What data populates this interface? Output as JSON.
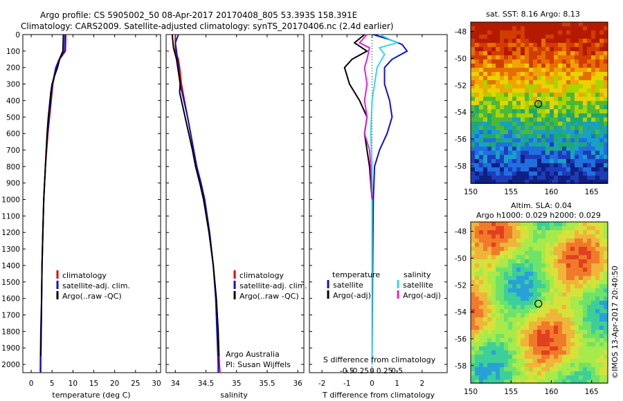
{
  "header": {
    "line1": "Argo profile: CS 5905002_50 08-Apr-2017 20170408_805 53.393S 158.391E",
    "line2": "Climatology: CARS2009. Satellite-adjusted climatology: synTS_20170406.nc (2.4d earlier)"
  },
  "colors": {
    "climatology": "#e00000",
    "satellite": "#1010d0",
    "argo": "#000000",
    "satellite_s": "#30d8e8",
    "argo_s": "#e020e0"
  },
  "panels": {
    "temperature": {
      "xlabel": "temperature (deg C)",
      "legend": [
        "climatology",
        "satellite-adj. clim.",
        "Argo(..raw -QC)"
      ]
    },
    "salinity": {
      "xlabel": "salinity",
      "legend": [
        "climatology",
        "satellite-adj. clim.",
        "Argo(..raw -QC)"
      ],
      "note1": "Argo Australia",
      "note2": "PI: Susan Wijffels"
    },
    "difference": {
      "xlabel_bottom": "T difference from climatology",
      "xlabel_top": "S difference from climatology",
      "legend_t_head": "temperature",
      "legend_s_head": "salinity",
      "legend_t": [
        "satellite",
        "Argo(-adj)"
      ],
      "legend_s": [
        "satellite",
        "Argo(-adj)"
      ]
    }
  },
  "maps": {
    "sst_title": "sat. SST: 8.16 Argo: 8.13",
    "sla_title1": "Altim. SLA: 0.04",
    "sla_title2": "Argo h1000: 0.029 h2000: 0.029",
    "side_label": "©IMOS 13-Apr-2017 20:40:50",
    "lon_ticks": [
      "150",
      "155",
      "160",
      "165"
    ],
    "lat_ticks": [
      "-48",
      "-50",
      "-52",
      "-54",
      "-56",
      "-58"
    ],
    "float_lon": 158.391,
    "float_lat": -53.393
  },
  "chart_data": [
    {
      "type": "line",
      "name": "temperature",
      "xlabel": "temperature (deg C)",
      "ylabel": "",
      "xlim": [
        -2,
        31
      ],
      "ylim": [
        2050,
        0
      ],
      "x_ticks": [
        0,
        5,
        10,
        15,
        20,
        25,
        30
      ],
      "y_ticks": [
        0,
        100,
        200,
        300,
        400,
        500,
        600,
        700,
        800,
        900,
        1000,
        1100,
        1200,
        1300,
        1400,
        1500,
        1600,
        1700,
        1800,
        1900,
        2000
      ],
      "series": [
        {
          "name": "climatology",
          "color": "#e00000",
          "depth": [
            0,
            100,
            150,
            200,
            300,
            400,
            500,
            600,
            700,
            800,
            900,
            1000,
            1200,
            1400,
            1600,
            1800,
            2000,
            2050
          ],
          "values": [
            8.3,
            8.2,
            6.8,
            6.0,
            5.2,
            4.8,
            4.4,
            4.0,
            3.7,
            3.4,
            3.2,
            3.0,
            2.8,
            2.6,
            2.5,
            2.4,
            2.3,
            2.3
          ]
        },
        {
          "name": "satellite-adj. clim.",
          "color": "#1010d0",
          "depth": [
            0,
            100,
            150,
            200,
            300,
            400,
            500,
            600,
            700,
            800,
            900,
            1000,
            1200,
            1400,
            1600,
            1800,
            2000,
            2050
          ],
          "values": [
            8.1,
            8.0,
            6.7,
            5.9,
            5.1,
            4.7,
            4.3,
            3.9,
            3.6,
            3.4,
            3.2,
            3.0,
            2.8,
            2.6,
            2.5,
            2.3,
            2.2,
            2.2
          ]
        },
        {
          "name": "Argo(..raw -QC)",
          "color": "#000000",
          "depth": [
            0,
            100,
            140,
            200,
            250,
            300,
            350,
            400,
            500,
            600,
            700,
            800,
            900,
            1000,
            1200,
            1400,
            1600,
            1800,
            1950
          ],
          "values": [
            7.7,
            7.6,
            6.9,
            6.3,
            5.6,
            5.0,
            4.7,
            4.5,
            4.1,
            3.8,
            3.6,
            3.4,
            3.2,
            3.0,
            2.8,
            2.6,
            2.5,
            2.4,
            2.3
          ]
        }
      ]
    },
    {
      "type": "line",
      "name": "salinity",
      "xlabel": "salinity",
      "xlim": [
        33.85,
        36.1
      ],
      "ylim": [
        2050,
        0
      ],
      "x_ticks": [
        34,
        34.5,
        35,
        35.5,
        36
      ],
      "series": [
        {
          "name": "climatology",
          "color": "#e00000",
          "depth": [
            0,
            100,
            150,
            200,
            300,
            400,
            500,
            600,
            700,
            800,
            900,
            1000,
            1200,
            1400,
            1600,
            1800,
            2000,
            2050
          ],
          "values": [
            34.0,
            34.0,
            34.05,
            34.07,
            34.1,
            34.15,
            34.2,
            34.25,
            34.3,
            34.35,
            34.42,
            34.48,
            34.56,
            34.62,
            34.67,
            34.7,
            34.72,
            34.73
          ]
        },
        {
          "name": "satellite-adj. clim.",
          "color": "#1010d0",
          "depth": [
            0,
            50,
            100,
            200,
            300,
            400,
            500,
            600,
            700,
            800,
            900,
            1000,
            1200,
            1400,
            1600,
            1800,
            2000,
            2050
          ],
          "values": [
            34.05,
            34.0,
            34.02,
            34.05,
            34.08,
            34.14,
            34.2,
            34.25,
            34.3,
            34.35,
            34.42,
            34.48,
            34.56,
            34.62,
            34.66,
            34.68,
            34.7,
            34.7
          ]
        },
        {
          "name": "Argo(..raw -QC)",
          "color": "#000000",
          "depth": [
            0,
            80,
            150,
            200,
            250,
            300,
            350,
            400,
            500,
            600,
            700,
            800,
            900,
            1000,
            1200,
            1400,
            1600,
            1800,
            1950
          ],
          "values": [
            33.95,
            33.97,
            34.02,
            34.04,
            34.06,
            34.08,
            34.07,
            34.1,
            34.16,
            34.22,
            34.28,
            34.33,
            34.4,
            34.46,
            34.55,
            34.62,
            34.67,
            34.7,
            34.71
          ]
        }
      ]
    },
    {
      "type": "line",
      "name": "difference",
      "xlabel": "T difference from climatology",
      "x_ticks_bottom": [
        -2,
        -1,
        0,
        1,
        2
      ],
      "x_ticks_top": [
        -0.5,
        -0.25,
        0,
        0.25,
        0.5
      ],
      "xlim": [
        -2.5,
        3
      ],
      "ylim": [
        2050,
        0
      ],
      "series": [
        {
          "name": "T satellite",
          "color": "#1010d0",
          "depth": [
            0,
            30,
            60,
            100,
            150,
            200,
            300,
            400,
            500,
            600,
            700,
            800,
            1000,
            1500,
            2000
          ],
          "values": [
            0.05,
            0.7,
            1.2,
            1.4,
            0.8,
            0.5,
            0.5,
            0.7,
            0.8,
            0.6,
            0.3,
            0.1,
            0.05,
            0.02,
            0.0
          ]
        },
        {
          "name": "T Argo(-adj)",
          "color": "#000000",
          "depth": [
            0,
            50,
            100,
            150,
            200,
            300,
            400,
            500,
            600,
            700,
            800,
            1000
          ],
          "values": [
            -0.3,
            -0.7,
            -0.2,
            -0.8,
            -1.1,
            -0.9,
            -0.5,
            -0.2,
            -0.3,
            -0.2,
            -0.1,
            0.0
          ]
        },
        {
          "name": "S satellite",
          "color": "#30d8e8",
          "depth": [
            0,
            50,
            80,
            120,
            200,
            400,
            600,
            800,
            1000,
            1500,
            2000
          ],
          "values": [
            0.3,
            1.0,
            0.3,
            0.5,
            0.2,
            0.0,
            -0.05,
            0.0,
            0.0,
            0.0,
            0.0
          ]
        },
        {
          "name": "S Argo(-adj)",
          "color": "#e020e0",
          "depth": [
            0,
            50,
            80,
            150,
            200,
            300,
            400,
            500,
            600,
            700,
            800,
            1000
          ],
          "values": [
            -0.2,
            -0.5,
            -0.1,
            -0.2,
            -0.3,
            -0.2,
            -0.3,
            -0.2,
            -0.3,
            -0.1,
            -0.05,
            0.0
          ]
        }
      ]
    }
  ]
}
